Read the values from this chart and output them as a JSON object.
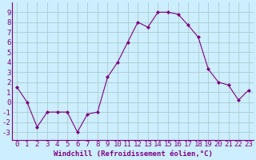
{
  "x": [
    0,
    1,
    2,
    3,
    4,
    5,
    6,
    7,
    8,
    9,
    10,
    11,
    12,
    13,
    14,
    15,
    16,
    17,
    18,
    19,
    20,
    21,
    22,
    23
  ],
  "y": [
    1.5,
    0.0,
    -2.5,
    -1.0,
    -1.0,
    -1.0,
    -3.0,
    -1.2,
    -1.0,
    2.5,
    4.0,
    6.0,
    8.0,
    7.5,
    9.0,
    9.0,
    8.8,
    7.7,
    6.5,
    3.3,
    2.0,
    1.7,
    0.2,
    1.2
  ],
  "line_color": "#800080",
  "marker": "D",
  "marker_size": 2.0,
  "bg_color": "#cceeff",
  "grid_color": "#aacccc",
  "xlabel": "Windchill (Refroidissement éolien,°C)",
  "xlabel_fontsize": 6.5,
  "ylabel_ticks": [
    -3,
    -2,
    -1,
    0,
    1,
    2,
    3,
    4,
    5,
    6,
    7,
    8,
    9
  ],
  "xlim": [
    -0.5,
    23.5
  ],
  "ylim": [
    -3.8,
    10.0
  ],
  "tick_fontsize": 6.5
}
